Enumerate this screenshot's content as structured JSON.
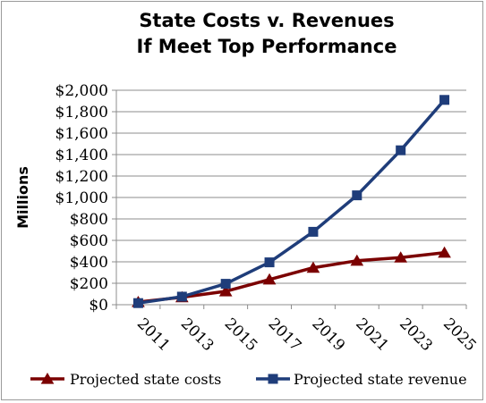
{
  "chart_data": {
    "type": "line",
    "title": [
      "State Costs v. Revenues",
      "If Meet Top Performance"
    ],
    "ylabel": "Millions",
    "xlabel": "",
    "x": [
      "2011",
      "2013",
      "2015",
      "2017",
      "2019",
      "2021",
      "2023",
      "2025"
    ],
    "ylim": [
      0,
      2000
    ],
    "yticks": [
      0,
      200,
      400,
      600,
      800,
      1000,
      1200,
      1400,
      1600,
      1800,
      2000
    ],
    "ytick_labels": [
      "$0",
      "$200",
      "$400",
      "$600",
      "$800",
      "$1,000",
      "$1,200",
      "$1,400",
      "$1,600",
      "$1,800",
      "$2,000"
    ],
    "grid": true,
    "legend_position": "bottom",
    "series": [
      {
        "name": "Projected state costs",
        "color": "#7b0000",
        "marker": "triangle",
        "values": [
          25,
          70,
          125,
          235,
          345,
          410,
          440,
          485
        ]
      },
      {
        "name": "Projected state revenue",
        "color": "#1f3d7a",
        "marker": "square",
        "values": [
          15,
          75,
          195,
          395,
          680,
          1020,
          1440,
          1910
        ]
      }
    ]
  }
}
